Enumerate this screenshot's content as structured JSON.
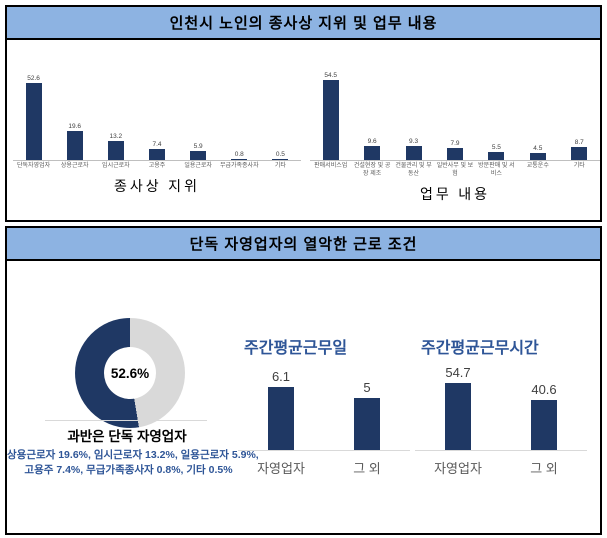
{
  "colors": {
    "banner_bg": "#8DB3E2",
    "bar_navy": "#1F3864",
    "donut_rest_gray": "#D9D9D9",
    "accent_blue": "#2E5597"
  },
  "section1": {
    "title": "인천시 노인의 종사상 지위 및 업무 내용"
  },
  "section2": {
    "title": "단독 자영업자의 열악한 근로 조건",
    "donut_center_label": "52.6%",
    "donut_caption": "과반은 단독 자영업자",
    "note_line1": "상용근로자 19.6%, 임시근로자 13.2%, 일용근로자 5.9%,",
    "note_line2": "고용주 7.4%, 무급가족종사자 0.8%, 기타 0.5%"
  },
  "chart_data": [
    {
      "type": "bar",
      "title": "종사상 지위",
      "categories": [
        "단독자영업자",
        "상용근로자",
        "임시근로자",
        "고용주",
        "일용근로자",
        "무급가족종사자",
        "기타"
      ],
      "values": [
        52.6,
        19.6,
        13.2,
        7.4,
        5.9,
        0.8,
        0.5
      ],
      "ylim": [
        0,
        60
      ],
      "grid": false,
      "legend": "none",
      "value_labels": true
    },
    {
      "type": "bar",
      "title": "업무 내용",
      "categories": [
        "판매서비스업",
        "건설현장 및 공장 제조",
        "건물관리 및 부동산",
        "일반사무 및 보험",
        "방문판매 및 서비스",
        "교통운수",
        "기타"
      ],
      "values": [
        54.5,
        9.6,
        9.3,
        7.9,
        5.5,
        4.5,
        8.7
      ],
      "ylim": [
        0,
        60
      ],
      "grid": false,
      "legend": "none",
      "value_labels": true
    },
    {
      "type": "pie",
      "subtype": "donut",
      "title": "과반은 단독 자영업자",
      "center_label": "52.6%",
      "slices": [
        {
          "label": "단독 자영업자",
          "value": 52.6,
          "color": "#1F3864"
        },
        {
          "label": "그 외",
          "value": 47.4,
          "color": "#D9D9D9"
        }
      ]
    },
    {
      "type": "bar",
      "title": "주간평균근무일",
      "categories": [
        "자영업자",
        "그 외"
      ],
      "values": [
        6.1,
        5
      ],
      "ylim": [
        0,
        7
      ],
      "grid": false,
      "legend": "none",
      "value_labels": true
    },
    {
      "type": "bar",
      "title": "주간평균근무시간",
      "categories": [
        "자영업자",
        "그 외"
      ],
      "values": [
        54.7,
        40.6
      ],
      "ylim": [
        0,
        60
      ],
      "grid": false,
      "legend": "none",
      "value_labels": true
    }
  ]
}
